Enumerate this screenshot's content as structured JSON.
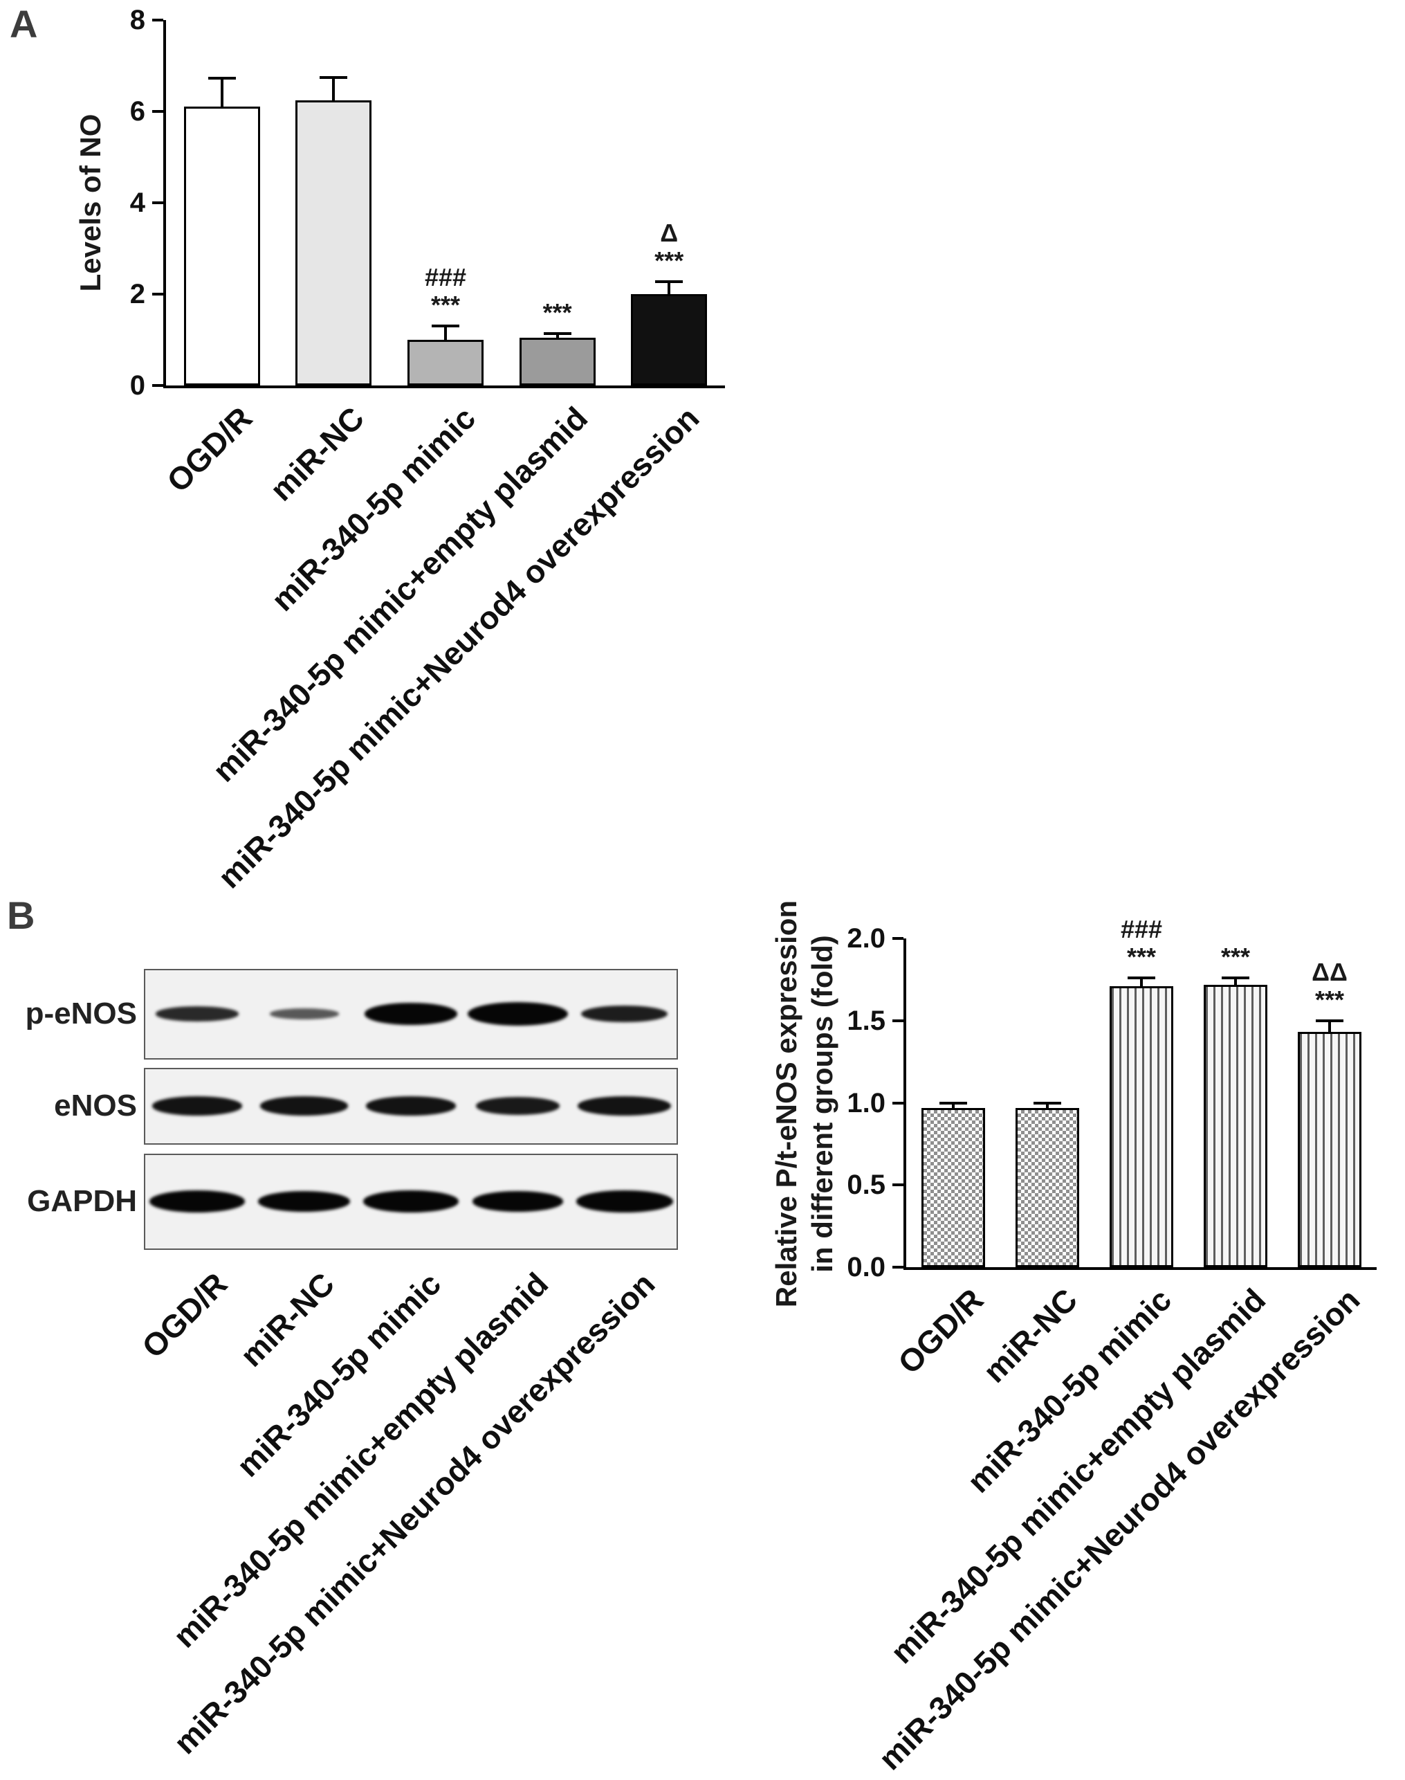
{
  "figure": {
    "panelA_label": "A",
    "panelB_label": "B"
  },
  "chart_data": [
    {
      "id": "panelA-no-levels",
      "type": "bar",
      "title": "",
      "xlabel": "",
      "ylabel": "Levels of NO",
      "ylim": [
        0,
        8
      ],
      "yticks": [
        "0",
        "2",
        "4",
        "6",
        "8"
      ],
      "grid": false,
      "legend": null,
      "categories": [
        "OGD/R",
        "miR-NC",
        "miR-340-5p mimic",
        "miR-340-5p mimic+empty plasmid",
        "miR-340-5p mimic+Neurod4 overexpression"
      ],
      "values": [
        6.1,
        6.25,
        1.0,
        1.05,
        2.0
      ],
      "errors": [
        0.62,
        0.5,
        0.3,
        0.08,
        0.28
      ],
      "bar_fills": [
        "#ffffff",
        "#e6e6e6",
        "#b4b4b4",
        "#9b9b9b",
        "#111111"
      ],
      "annotations": [
        [],
        [],
        [
          "###",
          "***"
        ],
        [
          "***"
        ],
        [
          "Δ",
          "***"
        ]
      ]
    },
    {
      "id": "panelB-pt-enos",
      "type": "bar",
      "title": "",
      "xlabel": "",
      "ylabel_lines": [
        "Relative P/t-eNOS  expression",
        "in different groups (fold)"
      ],
      "ylim": [
        0.0,
        2.0
      ],
      "yticks": [
        "0.0",
        "0.5",
        "1.0",
        "1.5",
        "2.0"
      ],
      "grid": false,
      "legend": null,
      "categories": [
        "OGD/R",
        "miR-NC",
        "miR-340-5p mimic",
        "miR-340-5p mimic+empty plasmid",
        "miR-340-5p mimic+Neurod4 overexpression"
      ],
      "values": [
        0.97,
        0.97,
        1.71,
        1.72,
        1.43
      ],
      "errors": [
        0.03,
        0.03,
        0.05,
        0.04,
        0.07
      ],
      "bar_patterns": [
        "checker",
        "checker",
        "vstripe",
        "vstripe",
        "vstripe"
      ],
      "annotations": [
        [],
        [],
        [
          "###",
          "***"
        ],
        [
          "***"
        ],
        [
          "ΔΔ",
          "***"
        ]
      ]
    }
  ],
  "blot": {
    "row_labels": [
      "p-eNOS",
      "eNOS",
      "GAPDH"
    ],
    "lane_labels": [
      "OGD/R",
      "miR-NC",
      "miR-340-5p mimic",
      "miR-340-5p mimic+empty plasmid",
      "miR-340-5p mimic+Neurod4 overexpression"
    ],
    "bands": [
      {
        "row": "p-eNOS",
        "rel_width": [
          0.83,
          0.69,
          0.93,
          1.0,
          0.86
        ],
        "rel_height": [
          0.62,
          0.45,
          0.92,
          1.0,
          0.72
        ],
        "darkness": [
          0.85,
          0.65,
          1.0,
          1.0,
          0.9
        ]
      },
      {
        "row": "eNOS",
        "rel_width": [
          0.9,
          0.88,
          0.9,
          0.83,
          0.93
        ],
        "rel_height": [
          0.8,
          0.8,
          0.8,
          0.75,
          0.8
        ],
        "darkness": [
          0.95,
          0.95,
          0.95,
          0.92,
          0.95
        ]
      },
      {
        "row": "GAPDH",
        "rel_width": [
          0.93,
          0.9,
          0.93,
          0.88,
          0.95
        ],
        "rel_height": [
          0.92,
          0.86,
          0.92,
          0.86,
          0.92
        ],
        "darkness": [
          1.0,
          1.0,
          1.0,
          1.0,
          1.0
        ]
      }
    ]
  }
}
